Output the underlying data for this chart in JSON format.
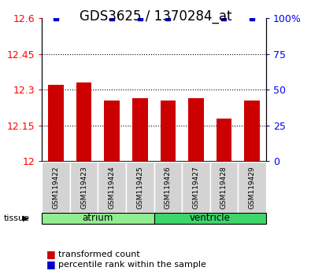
{
  "title": "GDS3625 / 1370284_at",
  "samples": [
    "GSM119422",
    "GSM119423",
    "GSM119424",
    "GSM119425",
    "GSM119426",
    "GSM119427",
    "GSM119428",
    "GSM119429"
  ],
  "red_values": [
    12.32,
    12.33,
    12.255,
    12.265,
    12.255,
    12.265,
    12.18,
    12.255
  ],
  "blue_shown": [
    true,
    false,
    true,
    true,
    true,
    false,
    true,
    true
  ],
  "ylim_left": [
    12.0,
    12.6
  ],
  "ylim_right": [
    0,
    100
  ],
  "yticks_left": [
    12.0,
    12.15,
    12.3,
    12.45,
    12.6
  ],
  "yticks_right": [
    0,
    25,
    50,
    75,
    100
  ],
  "ytick_labels_left": [
    "12",
    "12.15",
    "12.3",
    "12.45",
    "12.6"
  ],
  "ytick_labels_right": [
    "0",
    "25",
    "50",
    "75",
    "100%"
  ],
  "groups": [
    {
      "label": "atrium",
      "start": 0,
      "end": 3,
      "color": "#90EE90"
    },
    {
      "label": "ventricle",
      "start": 4,
      "end": 7,
      "color": "#3DD66A"
    }
  ],
  "tissue_label": "tissue",
  "legend_red": "transformed count",
  "legend_blue": "percentile rank within the sample",
  "bar_color": "#CC0000",
  "blue_marker_color": "#0000CC",
  "title_fontsize": 12,
  "tick_fontsize": 9,
  "bar_width": 0.55
}
